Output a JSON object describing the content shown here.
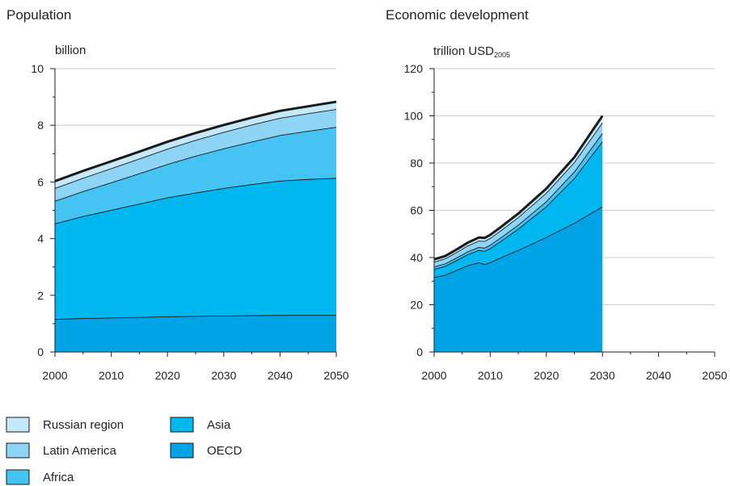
{
  "legend": [
    {
      "name": "Russian region",
      "color": "#c6e9f9"
    },
    {
      "name": "Latin America",
      "color": "#8dd4f5"
    },
    {
      "name": "Africa",
      "color": "#45c3f2"
    },
    {
      "name": "Asia",
      "color": "#00b7ef"
    },
    {
      "name": "OECD",
      "color": "#00a3e6"
    }
  ],
  "chart_data": [
    {
      "type": "area",
      "stacked": true,
      "title": "Population",
      "ylabel": "billion",
      "x": [
        2000,
        2005,
        2010,
        2015,
        2020,
        2025,
        2030,
        2035,
        2040,
        2045,
        2050
      ],
      "xlim": [
        2000,
        2050
      ],
      "xticks": [
        2000,
        2010,
        2020,
        2030,
        2040,
        2050
      ],
      "ylim": [
        0,
        10
      ],
      "yticks": [
        0,
        2,
        4,
        6,
        8,
        10
      ],
      "grid": true,
      "series": [
        {
          "name": "OECD",
          "values": [
            1.15,
            1.18,
            1.2,
            1.22,
            1.24,
            1.26,
            1.27,
            1.28,
            1.29,
            1.29,
            1.29
          ]
        },
        {
          "name": "Asia",
          "values": [
            3.37,
            3.6,
            3.8,
            4.0,
            4.2,
            4.35,
            4.5,
            4.63,
            4.74,
            4.8,
            4.84
          ]
        },
        {
          "name": "Africa",
          "values": [
            0.8,
            0.88,
            0.97,
            1.07,
            1.18,
            1.3,
            1.4,
            1.5,
            1.61,
            1.7,
            1.8
          ]
        },
        {
          "name": "Latin America",
          "values": [
            0.45,
            0.47,
            0.5,
            0.52,
            0.54,
            0.56,
            0.58,
            0.6,
            0.61,
            0.62,
            0.63
          ]
        },
        {
          "name": "Russian region",
          "values": [
            0.26,
            0.26,
            0.26,
            0.26,
            0.26,
            0.26,
            0.26,
            0.26,
            0.26,
            0.26,
            0.27
          ]
        }
      ]
    },
    {
      "type": "area",
      "stacked": true,
      "title": "Economic development",
      "ylabel": "trillion USD",
      "ylabel_sub": "2005",
      "x": [
        2000,
        2002,
        2004,
        2006,
        2008,
        2009,
        2010,
        2012,
        2015,
        2020,
        2025,
        2030
      ],
      "xlim": [
        2000,
        2050
      ],
      "xticks": [
        2000,
        2010,
        2020,
        2030,
        2040,
        2050
      ],
      "ylim": [
        0,
        120
      ],
      "yticks": [
        0,
        20,
        40,
        60,
        80,
        100,
        120
      ],
      "grid": true,
      "series": [
        {
          "name": "OECD",
          "values": [
            31.5,
            32.5,
            34.5,
            36.5,
            37.8,
            37.0,
            37.8,
            40.0,
            43.0,
            48.5,
            54.5,
            61.5
          ]
        },
        {
          "name": "Asia",
          "values": [
            3.5,
            3.8,
            4.2,
            4.7,
            5.2,
            5.6,
            6.0,
            7.0,
            9.0,
            13.0,
            19.0,
            27.5
          ]
        },
        {
          "name": "Africa",
          "values": [
            1.0,
            1.05,
            1.1,
            1.2,
            1.3,
            1.4,
            1.4,
            1.5,
            1.7,
            2.1,
            2.7,
            3.5
          ]
        },
        {
          "name": "Latin America",
          "values": [
            2.0,
            2.1,
            2.3,
            2.5,
            2.7,
            2.8,
            2.9,
            3.0,
            3.2,
            3.6,
            4.0,
            4.5
          ]
        },
        {
          "name": "Russian region",
          "values": [
            1.2,
            1.2,
            1.3,
            1.4,
            1.5,
            1.5,
            1.5,
            1.6,
            1.7,
            2.0,
            2.3,
            3.0
          ]
        }
      ]
    }
  ]
}
